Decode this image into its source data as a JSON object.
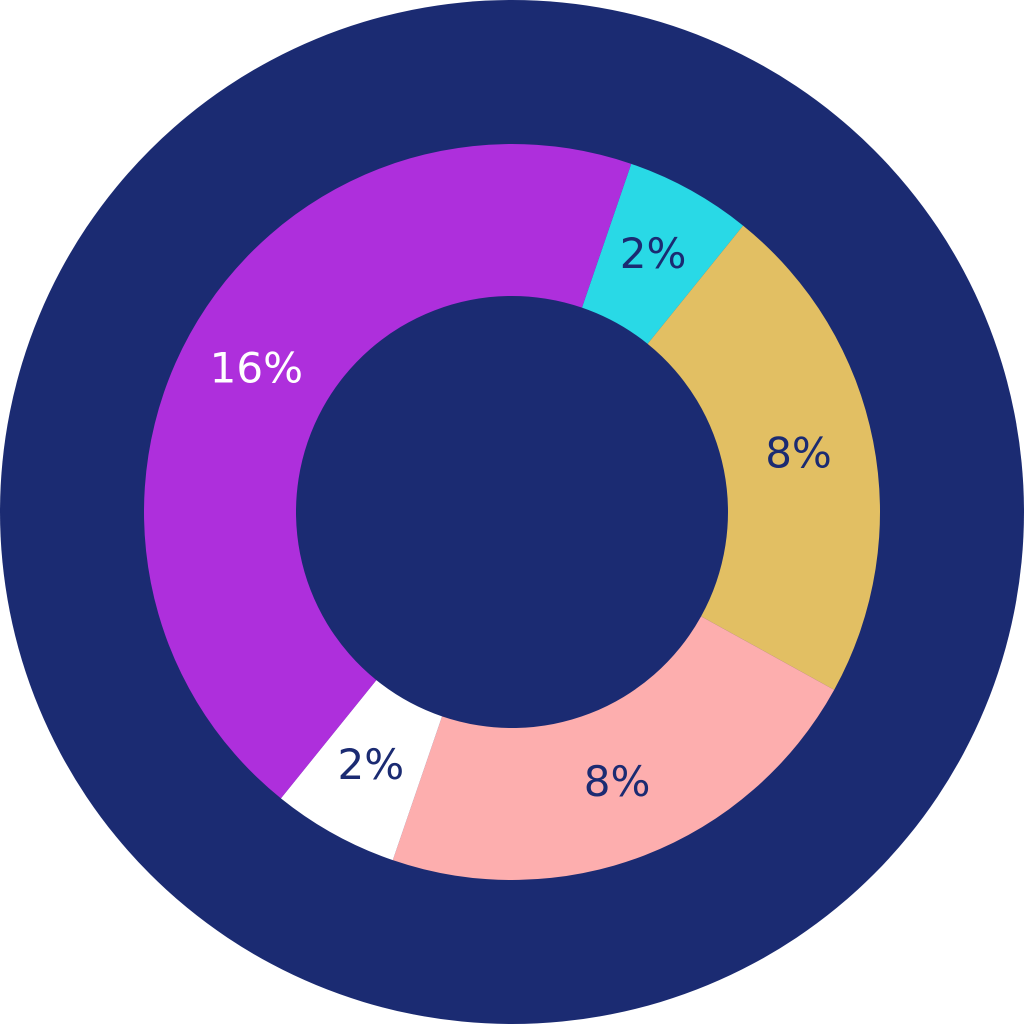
{
  "chart_data": {
    "type": "donut",
    "values": [
      2,
      8,
      8,
      2,
      16
    ],
    "value_labels": [
      "2%",
      "8%",
      "8%",
      "2%",
      "16%"
    ],
    "colors": [
      "#29d9e6",
      "#e2bf63",
      "#fdaeae",
      "#ffffff",
      "#ae2fdc"
    ],
    "label_colors": [
      "#1b2b72",
      "#1b2b72",
      "#1b2b72",
      "#1b2b72",
      "#ffffff"
    ]
  }
}
